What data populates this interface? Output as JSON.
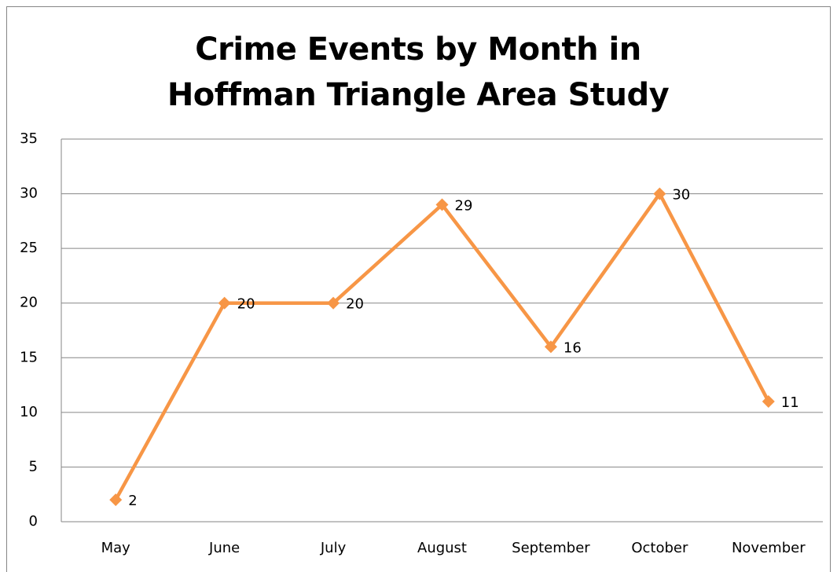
{
  "chart_data": {
    "type": "line",
    "title": "Crime Events by Month in Hoffman Triangle Area Study",
    "categories": [
      "May",
      "June",
      "July",
      "August",
      "September",
      "October",
      "November"
    ],
    "values": [
      2,
      20,
      20,
      29,
      16,
      30,
      11
    ],
    "color": "#f79646",
    "ylim": [
      0,
      35
    ],
    "yticks": [
      0,
      5,
      10,
      15,
      20,
      25,
      30,
      35
    ],
    "grid": true
  }
}
